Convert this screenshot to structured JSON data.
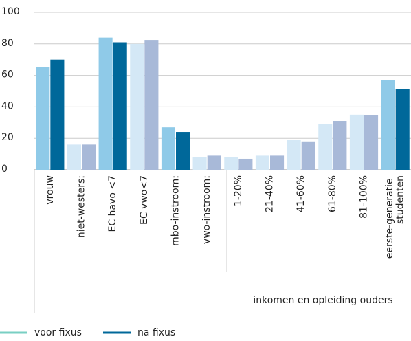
{
  "chart_data": {
    "type": "bar",
    "categories": [
      "vrouw",
      "niet-westers:",
      "EC havo <7",
      "EC vwo<7",
      "mbo-instroom:",
      "vwo-instroom:",
      "1-20%",
      "21-40%",
      "41-60%",
      "61-80%",
      "81-100%",
      "eerste-generatie studenten"
    ],
    "category_group": "inkomen en opleiding ouders",
    "series": [
      {
        "name": "voor fixus",
        "color": "#79cfc3",
        "values": [
          65.5,
          16,
          84,
          80,
          27,
          8,
          8,
          9,
          19,
          29,
          35,
          57
        ],
        "colors": [
          "#8fcae8",
          "#d4e8f6",
          "#8fcae8",
          "#d4e8f6",
          "#8fcae8",
          "#d4e8f6",
          "#d4e8f6",
          "#d4e8f6",
          "#d4e8f6",
          "#d4e8f6",
          "#d4e8f6",
          "#8fcae8"
        ]
      },
      {
        "name": "na fixus",
        "color": "#00689a",
        "values": [
          70,
          16,
          81,
          82.5,
          24,
          9,
          7,
          9,
          18,
          31,
          34.5,
          51.5
        ],
        "colors": [
          "#00689a",
          "#a8b9d8",
          "#00689a",
          "#a8b9d8",
          "#00689a",
          "#a8b9d8",
          "#a8b9d8",
          "#a8b9d8",
          "#a8b9d8",
          "#a8b9d8",
          "#a8b9d8",
          "#00689a"
        ]
      }
    ],
    "ylim": [
      0,
      100
    ],
    "yticks": [
      0,
      20,
      40,
      60,
      80,
      100
    ],
    "grid": true,
    "legend": "bottom"
  }
}
